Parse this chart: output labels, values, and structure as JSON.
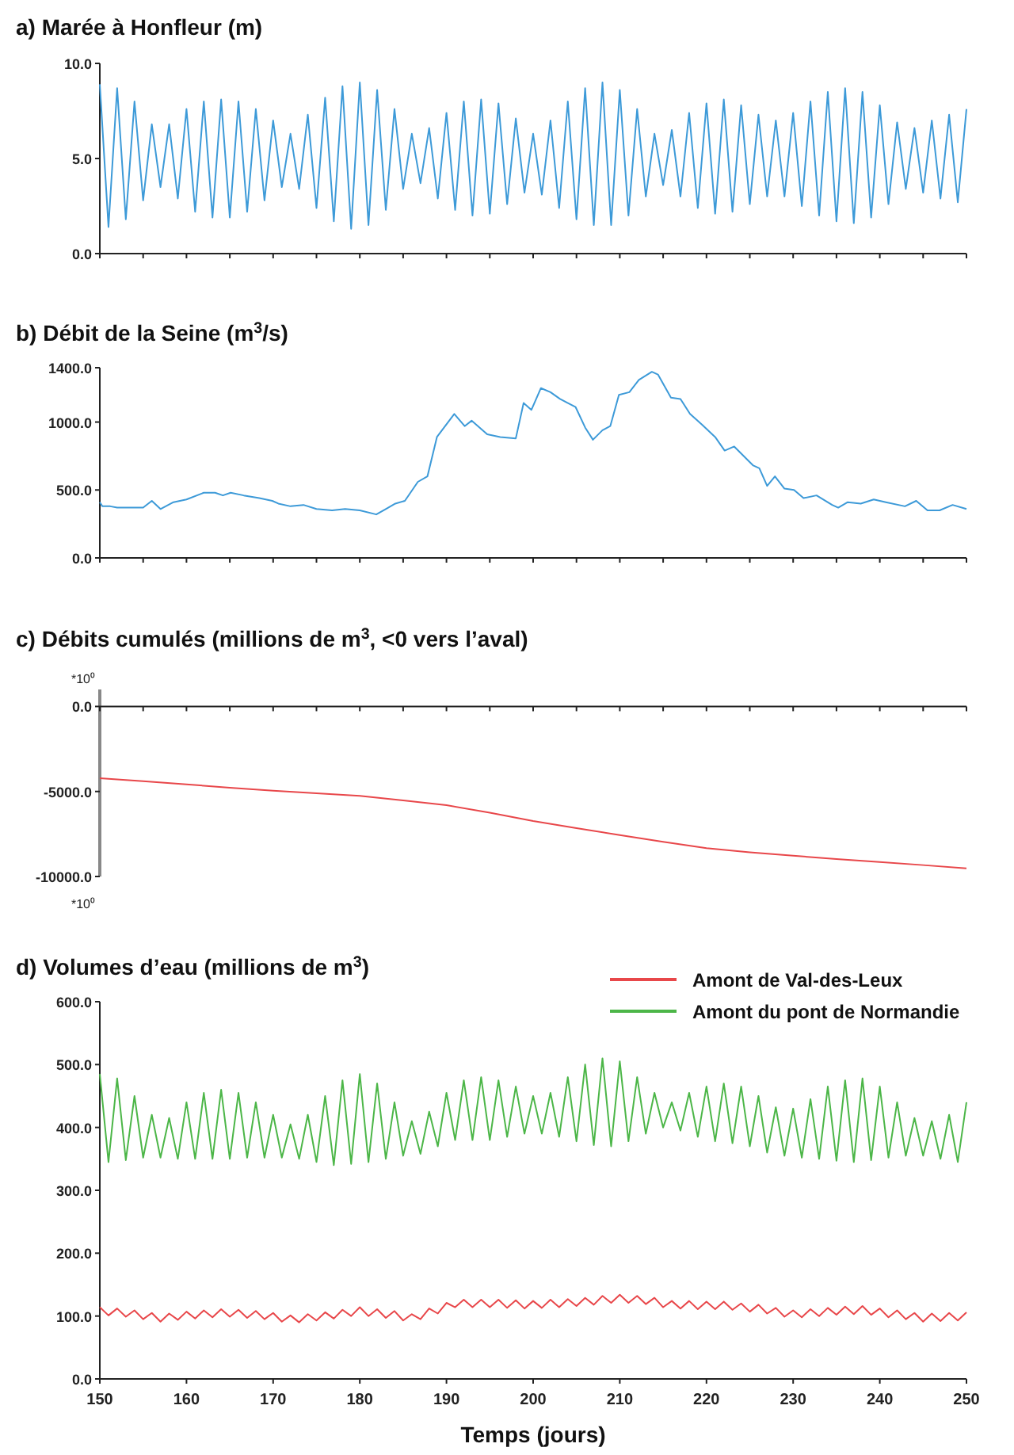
{
  "chart_data": [
    {
      "type": "line",
      "title": "a) Marée à Honfleur (m)",
      "xlim": [
        150,
        250
      ],
      "ylim": [
        0,
        10
      ],
      "tick_labels": "y",
      "xticks": [
        {
          "value": 150,
          "label": null
        },
        {
          "value": 155,
          "label": null
        },
        {
          "value": 160,
          "label": null
        },
        {
          "value": 165,
          "label": null
        },
        {
          "value": 170,
          "label": null
        },
        {
          "value": 175,
          "label": null
        },
        {
          "value": 180,
          "label": null
        },
        {
          "value": 185,
          "label": null
        },
        {
          "value": 190,
          "label": null
        },
        {
          "value": 195,
          "label": null
        },
        {
          "value": 200,
          "label": null
        },
        {
          "value": 205,
          "label": null
        },
        {
          "value": 210,
          "label": null
        },
        {
          "value": 215,
          "label": null
        },
        {
          "value": 220,
          "label": null
        },
        {
          "value": 225,
          "label": null
        },
        {
          "value": 230,
          "label": null
        },
        {
          "value": 235,
          "label": null
        },
        {
          "value": 240,
          "label": null
        },
        {
          "value": 245,
          "label": null
        },
        {
          "value": 250,
          "label": null
        }
      ],
      "yticks": [
        {
          "value": 0,
          "label": "0.0"
        },
        {
          "value": 5,
          "label": "5.0"
        },
        {
          "value": 10,
          "label": "10.0"
        }
      ],
      "x": [
        150,
        151,
        152,
        153,
        154,
        155,
        156,
        157,
        158,
        159,
        160,
        161,
        162,
        163,
        164,
        165,
        166,
        167,
        168,
        169,
        170,
        171,
        172,
        173,
        174,
        175,
        176,
        177,
        178,
        179,
        180,
        181,
        182,
        183,
        184,
        185,
        186,
        187,
        188,
        189,
        190,
        191,
        192,
        193,
        194,
        195,
        196,
        197,
        198,
        199,
        200,
        201,
        202,
        203,
        204,
        205,
        206,
        207,
        208,
        209,
        210,
        211,
        212,
        213,
        214,
        215,
        216,
        217,
        218,
        219,
        220,
        221,
        222,
        223,
        224,
        225,
        226,
        227,
        228,
        229,
        230,
        231,
        232,
        233,
        234,
        235,
        236,
        237,
        238,
        239,
        240,
        241,
        242,
        243,
        244,
        245,
        246,
        247,
        248,
        249,
        250
      ],
      "series": [
        {
          "color": "#3d9ad8",
          "values": [
            8.9,
            1.4,
            8.7,
            1.8,
            8.0,
            2.8,
            6.8,
            3.5,
            6.8,
            2.9,
            7.6,
            2.2,
            8.0,
            1.9,
            8.1,
            1.9,
            8.0,
            2.2,
            7.6,
            2.8,
            7.0,
            3.5,
            6.3,
            3.4,
            7.3,
            2.4,
            8.2,
            1.7,
            8.8,
            1.3,
            9.0,
            1.5,
            8.6,
            2.3,
            7.6,
            3.4,
            6.3,
            3.7,
            6.6,
            2.9,
            7.4,
            2.3,
            8.0,
            2.0,
            8.1,
            2.1,
            7.9,
            2.6,
            7.1,
            3.2,
            6.3,
            3.1,
            7.0,
            2.4,
            8.0,
            1.8,
            8.7,
            1.5,
            9.0,
            1.5,
            8.6,
            2.0,
            7.6,
            3.0,
            6.3,
            3.6,
            6.5,
            3.0,
            7.4,
            2.4,
            7.9,
            2.1,
            8.1,
            2.2,
            7.8,
            2.6,
            7.3,
            3.0,
            7.0,
            3.0,
            7.4,
            2.5,
            8.0,
            2.0,
            8.5,
            1.7,
            8.7,
            1.6,
            8.5,
            1.9,
            7.8,
            2.6,
            6.9,
            3.4,
            6.6,
            3.2,
            7.0,
            2.9,
            7.3,
            2.7,
            7.6
          ]
        }
      ]
    },
    {
      "type": "line",
      "title": "b) Débit de la Seine (m$^{3}$/s)",
      "xlim": [
        150,
        250
      ],
      "ylim": [
        0,
        1400
      ],
      "tick_labels": "y",
      "xticks": [
        {
          "value": 150,
          "label": null
        },
        {
          "value": 155,
          "label": null
        },
        {
          "value": 160,
          "label": null
        },
        {
          "value": 165,
          "label": null
        },
        {
          "value": 170,
          "label": null
        },
        {
          "value": 175,
          "label": null
        },
        {
          "value": 180,
          "label": null
        },
        {
          "value": 185,
          "label": null
        },
        {
          "value": 190,
          "label": null
        },
        {
          "value": 195,
          "label": null
        },
        {
          "value": 200,
          "label": null
        },
        {
          "value": 205,
          "label": null
        },
        {
          "value": 210,
          "label": null
        },
        {
          "value": 215,
          "label": null
        },
        {
          "value": 220,
          "label": null
        },
        {
          "value": 225,
          "label": null
        },
        {
          "value": 230,
          "label": null
        },
        {
          "value": 235,
          "label": null
        },
        {
          "value": 240,
          "label": null
        },
        {
          "value": 245,
          "label": null
        },
        {
          "value": 250,
          "label": null
        }
      ],
      "yticks": [
        {
          "value": 0,
          "label": "0.0"
        },
        {
          "value": 500,
          "label": "500.0"
        },
        {
          "value": 1000,
          "label": "1000.0"
        },
        {
          "value": 1400,
          "label": "1400.0"
        }
      ],
      "x": [
        150,
        150.3,
        151.2,
        152,
        155,
        156,
        157,
        158.5,
        160,
        162,
        163.3,
        164.2,
        165.1,
        166.6,
        168.4,
        169.9,
        170.6,
        172,
        173.5,
        175,
        176.8,
        178.3,
        180,
        181.9,
        183,
        184.1,
        185.2,
        186.7,
        187.8,
        188.9,
        190.9,
        192.1,
        192.9,
        194.7,
        196.2,
        198,
        198.9,
        199.8,
        200.9,
        202,
        203.1,
        204.9,
        206,
        206.9,
        208,
        208.9,
        209.9,
        211.1,
        212.2,
        213.7,
        214.4,
        215.9,
        217,
        218.1,
        219.5,
        221,
        222.1,
        223.2,
        225.4,
        226.1,
        227,
        227.9,
        229,
        230.1,
        231.2,
        232.7,
        234.5,
        235.2,
        236.3,
        237.8,
        239.3,
        240.7,
        242.9,
        244.2,
        245.5,
        246.9,
        248.4,
        250
      ],
      "series": [
        {
          "color": "#3d9ad8",
          "values": [
            410,
            380,
            380,
            370,
            370,
            420,
            360,
            410,
            430,
            480,
            480,
            460,
            480,
            460,
            440,
            420,
            400,
            380,
            390,
            360,
            350,
            360,
            350,
            320,
            360,
            400,
            420,
            560,
            600,
            890,
            1060,
            970,
            1010,
            910,
            890,
            880,
            1140,
            1090,
            1250,
            1220,
            1170,
            1110,
            960,
            870,
            940,
            970,
            1200,
            1220,
            1310,
            1370,
            1350,
            1180,
            1170,
            1060,
            980,
            890,
            790,
            820,
            680,
            660,
            530,
            600,
            510,
            500,
            440,
            460,
            390,
            370,
            410,
            400,
            430,
            410,
            380,
            420,
            350,
            350,
            390,
            360
          ]
        }
      ]
    },
    {
      "type": "line",
      "title": "c) Débits cumulés (millions de m$^{3}$, <0 vers l’aval)",
      "xlim": [
        150,
        250
      ],
      "ylim": [
        -10000,
        1000
      ],
      "tick_labels": "y",
      "xticks": [
        {
          "value": 150,
          "label": null
        },
        {
          "value": 155,
          "label": null
        },
        {
          "value": 160,
          "label": null
        },
        {
          "value": 165,
          "label": null
        },
        {
          "value": 170,
          "label": null
        },
        {
          "value": 175,
          "label": null
        },
        {
          "value": 180,
          "label": null
        },
        {
          "value": 185,
          "label": null
        },
        {
          "value": 190,
          "label": null
        },
        {
          "value": 195,
          "label": null
        },
        {
          "value": 200,
          "label": null
        },
        {
          "value": 205,
          "label": null
        },
        {
          "value": 210,
          "label": null
        },
        {
          "value": 215,
          "label": null
        },
        {
          "value": 220,
          "label": null
        },
        {
          "value": 225,
          "label": null
        },
        {
          "value": 230,
          "label": null
        },
        {
          "value": 235,
          "label": null
        },
        {
          "value": 240,
          "label": null
        },
        {
          "value": 245,
          "label": null
        },
        {
          "value": 250,
          "label": null
        }
      ],
      "yticks": [
        {
          "value": 0,
          "label": "0.0"
        },
        {
          "value": -5000,
          "label": "-5000.0"
        },
        {
          "value": -10000,
          "label": "-10000.0"
        }
      ],
      "annotations": [
        "*10⁰",
        "*10⁰"
      ],
      "x": [
        150,
        155,
        160,
        165,
        170,
        175,
        180,
        185,
        190,
        195,
        200,
        205,
        210,
        215,
        220,
        225,
        230,
        235,
        240,
        245,
        250
      ],
      "series": [
        {
          "color": "#e8474a",
          "values": [
            -4220,
            -4400,
            -4580,
            -4780,
            -4960,
            -5110,
            -5260,
            -5520,
            -5810,
            -6250,
            -6740,
            -7160,
            -7560,
            -7960,
            -8330,
            -8580,
            -8780,
            -8970,
            -9150,
            -9330,
            -9520
          ]
        }
      ]
    },
    {
      "type": "line",
      "title": "d) Volumes d’eau (millions de m$^{3}$)",
      "xlabel": "Temps (jours)",
      "xlim": [
        150,
        250
      ],
      "ylim": [
        0,
        600
      ],
      "legend": "top right",
      "xticks": [
        150,
        160,
        170,
        180,
        190,
        200,
        210,
        220,
        230,
        240,
        250
      ],
      "yticks": [
        {
          "value": 0,
          "label": "0.0"
        },
        {
          "value": 100,
          "label": "100.0"
        },
        {
          "value": 200,
          "label": "200.0"
        },
        {
          "value": 300,
          "label": "300.0"
        },
        {
          "value": 400,
          "label": "400.0"
        },
        {
          "value": 500,
          "label": "500.0"
        },
        {
          "value": 600,
          "label": "600.0"
        }
      ],
      "x": [
        150,
        151,
        152,
        153,
        154,
        155,
        156,
        157,
        158,
        159,
        160,
        161,
        162,
        163,
        164,
        165,
        166,
        167,
        168,
        169,
        170,
        171,
        172,
        173,
        174,
        175,
        176,
        177,
        178,
        179,
        180,
        181,
        182,
        183,
        184,
        185,
        186,
        187,
        188,
        189,
        190,
        191,
        192,
        193,
        194,
        195,
        196,
        197,
        198,
        199,
        200,
        201,
        202,
        203,
        204,
        205,
        206,
        207,
        208,
        209,
        210,
        211,
        212,
        213,
        214,
        215,
        216,
        217,
        218,
        219,
        220,
        221,
        222,
        223,
        224,
        225,
        226,
        227,
        228,
        229,
        230,
        231,
        232,
        233,
        234,
        235,
        236,
        237,
        238,
        239,
        240,
        241,
        242,
        243,
        244,
        245,
        246,
        247,
        248,
        249,
        250
      ],
      "series": [
        {
          "name": "Amont de Val-des-Leux",
          "color": "#e8474a",
          "values": [
            114,
            101,
            112,
            99,
            109,
            95,
            105,
            91,
            104,
            94,
            107,
            96,
            109,
            98,
            111,
            99,
            110,
            97,
            108,
            95,
            105,
            91,
            101,
            90,
            103,
            93,
            106,
            96,
            110,
            100,
            114,
            100,
            111,
            97,
            108,
            93,
            103,
            95,
            112,
            104,
            121,
            114,
            126,
            114,
            126,
            114,
            126,
            113,
            125,
            112,
            124,
            113,
            126,
            114,
            127,
            116,
            129,
            118,
            132,
            121,
            134,
            121,
            132,
            119,
            129,
            114,
            124,
            112,
            124,
            111,
            123,
            111,
            123,
            110,
            120,
            107,
            118,
            104,
            113,
            99,
            109,
            98,
            111,
            100,
            113,
            102,
            115,
            103,
            116,
            102,
            112,
            98,
            109,
            95,
            105,
            91,
            104,
            92,
            105,
            93,
            106
          ]
        },
        {
          "name": "Amont du pont de Normandie",
          "color": "#4cb648",
          "values": [
            485,
            345,
            478,
            348,
            450,
            352,
            420,
            352,
            415,
            350,
            440,
            350,
            455,
            350,
            460,
            350,
            455,
            352,
            440,
            352,
            420,
            352,
            405,
            350,
            420,
            345,
            450,
            340,
            475,
            342,
            485,
            345,
            470,
            350,
            440,
            355,
            410,
            358,
            425,
            370,
            455,
            380,
            475,
            380,
            480,
            380,
            475,
            385,
            465,
            390,
            450,
            390,
            455,
            385,
            480,
            378,
            500,
            372,
            510,
            370,
            505,
            378,
            480,
            390,
            455,
            400,
            440,
            395,
            455,
            385,
            465,
            378,
            470,
            375,
            465,
            370,
            450,
            360,
            432,
            355,
            430,
            352,
            445,
            350,
            465,
            347,
            475,
            345,
            478,
            348,
            465,
            352,
            440,
            355,
            415,
            355,
            410,
            350,
            420,
            345,
            440
          ]
        }
      ]
    }
  ]
}
